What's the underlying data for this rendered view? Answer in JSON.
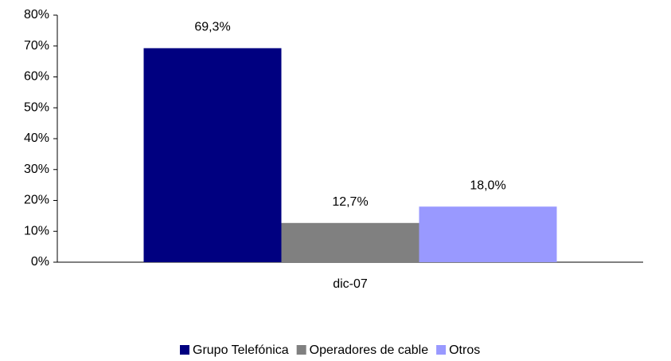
{
  "chart_data": {
    "type": "bar",
    "categories": [
      "dic-07"
    ],
    "series": [
      {
        "name": "Grupo Telefónica",
        "color": "#000080",
        "values": [
          69.3
        ],
        "value_labels": [
          "69,3%"
        ]
      },
      {
        "name": "Operadores de cable",
        "color": "#808080",
        "values": [
          12.7
        ],
        "value_labels": [
          "12,7%"
        ]
      },
      {
        "name": "Otros",
        "color": "#9999ff",
        "values": [
          18.0
        ],
        "value_labels": [
          "18,0%"
        ]
      }
    ],
    "ylim": [
      0,
      80
    ],
    "yticks": [
      {
        "value": 0,
        "label": "0%"
      },
      {
        "value": 10,
        "label": "10%"
      },
      {
        "value": 20,
        "label": "20%"
      },
      {
        "value": 30,
        "label": "30%"
      },
      {
        "value": 40,
        "label": "40%"
      },
      {
        "value": 50,
        "label": "50%"
      },
      {
        "value": 60,
        "label": "60%"
      },
      {
        "value": 70,
        "label": "70%"
      },
      {
        "value": 80,
        "label": "80%"
      }
    ],
    "legend": "bottom"
  }
}
